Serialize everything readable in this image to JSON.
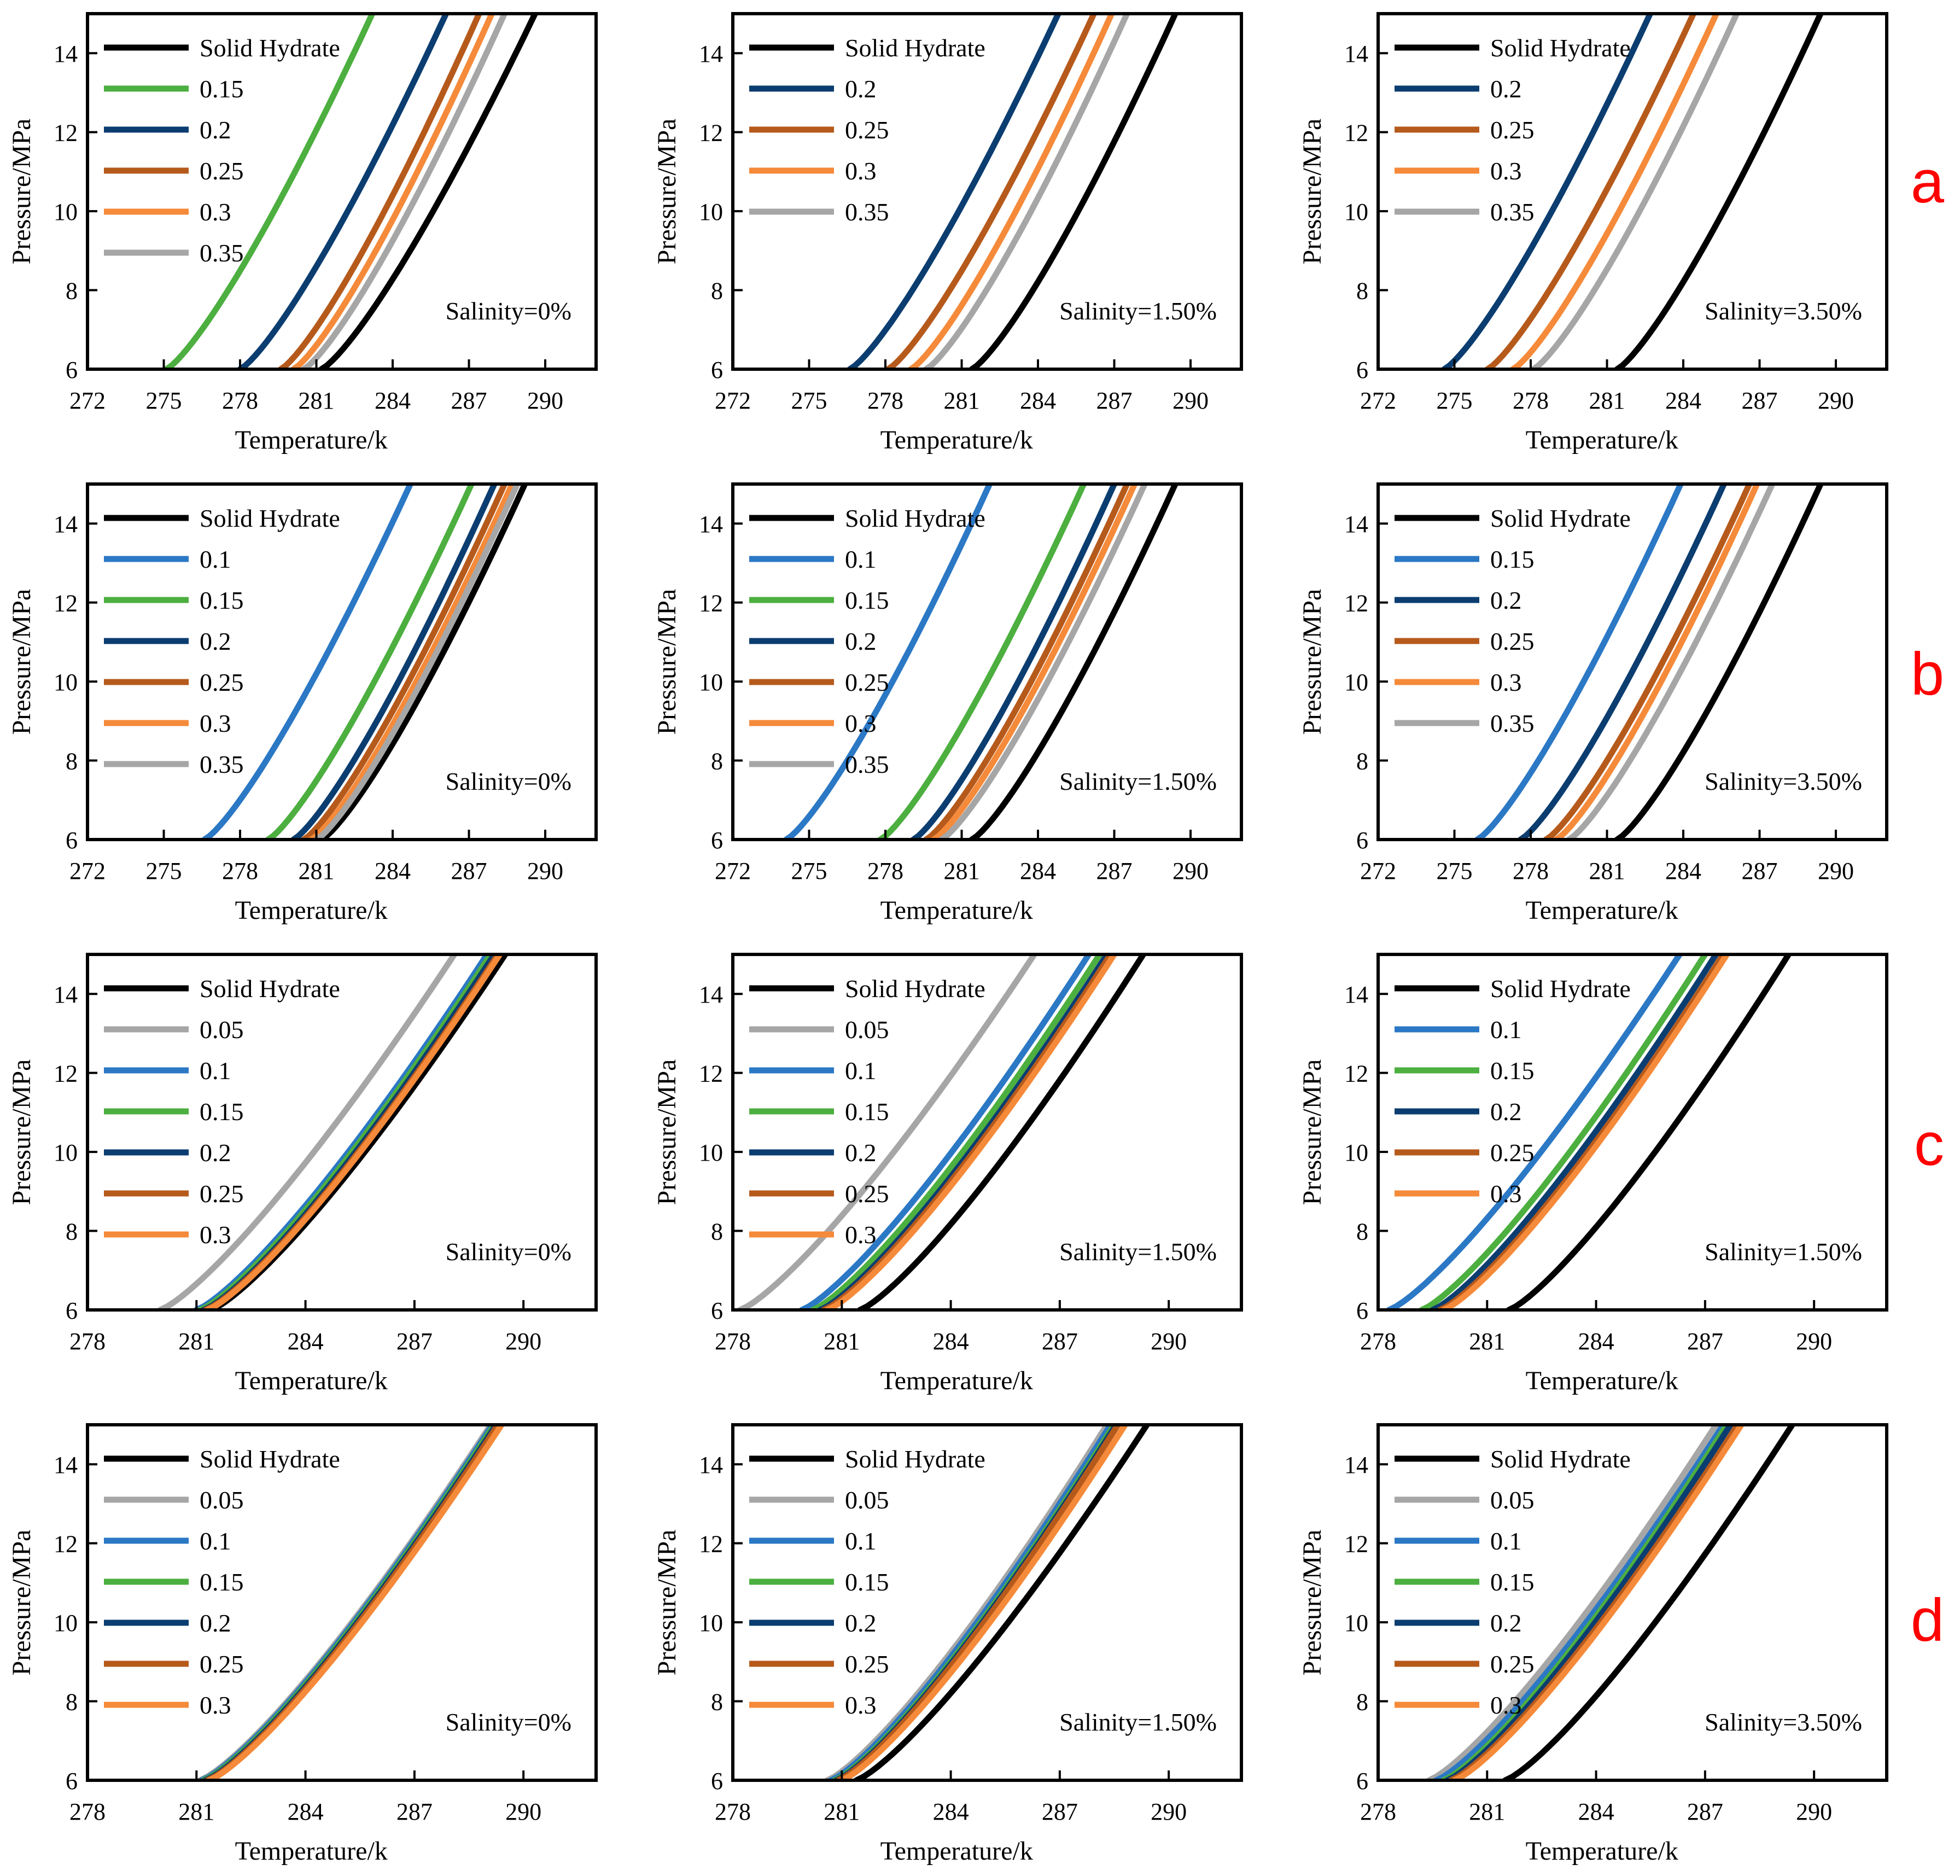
{
  "colors": {
    "black": "#000000",
    "green": "#4caf3f",
    "navy": "#0b3d70",
    "brown": "#b65a1c",
    "orange": "#f58a3a",
    "gray": "#a6a6a6",
    "blue": "#2b78c5",
    "letter": "#ff0000"
  },
  "chart_data": [
    {
      "id": "a1",
      "type": "line",
      "row": "a",
      "xlabel": "Temperature/k",
      "ylabel": "Pressure/MPa",
      "xlim": [
        272,
        292
      ],
      "ylim": [
        6,
        15
      ],
      "xticks": [
        272,
        275,
        278,
        281,
        284,
        287,
        290
      ],
      "yticks": [
        6,
        8,
        10,
        12,
        14
      ],
      "annotation": "Salinity=0%",
      "legend": [
        "Solid Hydrate",
        "0.15",
        "0.2",
        "0.25",
        "0.3",
        "0.35"
      ],
      "series": [
        {
          "name": "Solid Hydrate",
          "color": "black",
          "x": [
            281.2,
            289.6
          ]
        },
        {
          "name": "0.15",
          "color": "green",
          "x": [
            275.1,
            283.2
          ]
        },
        {
          "name": "0.2",
          "color": "navy",
          "x": [
            278.0,
            286.1
          ]
        },
        {
          "name": "0.25",
          "color": "brown",
          "x": [
            279.6,
            287.4
          ]
        },
        {
          "name": "0.3",
          "color": "orange",
          "x": [
            280.1,
            287.9
          ]
        },
        {
          "name": "0.35",
          "color": "gray",
          "x": [
            280.5,
            288.4
          ]
        }
      ]
    },
    {
      "id": "a2",
      "type": "line",
      "row": "a",
      "xlabel": "Temperature/k",
      "ylabel": "Pressure/MPa",
      "xlim": [
        272,
        292
      ],
      "ylim": [
        6,
        15
      ],
      "xticks": [
        272,
        275,
        278,
        281,
        284,
        287,
        290
      ],
      "yticks": [
        6,
        8,
        10,
        12,
        14
      ],
      "annotation": "Salinity=1.50%",
      "legend": [
        "Solid Hydrate",
        "0.2",
        "0.25",
        "0.3",
        "0.35"
      ],
      "series": [
        {
          "name": "Solid Hydrate",
          "color": "black",
          "x": [
            281.4,
            289.4
          ]
        },
        {
          "name": "0.2",
          "color": "navy",
          "x": [
            276.6,
            284.8
          ]
        },
        {
          "name": "0.25",
          "color": "brown",
          "x": [
            278.1,
            286.2
          ]
        },
        {
          "name": "0.3",
          "color": "orange",
          "x": [
            279.0,
            286.9
          ]
        },
        {
          "name": "0.35",
          "color": "gray",
          "x": [
            279.6,
            287.5
          ]
        }
      ]
    },
    {
      "id": "a3",
      "type": "line",
      "row": "a",
      "xlabel": "Temperature/k",
      "ylabel": "Pressure/MPa",
      "xlim": [
        272,
        292
      ],
      "ylim": [
        6,
        15
      ],
      "xticks": [
        272,
        275,
        278,
        281,
        284,
        287,
        290
      ],
      "yticks": [
        6,
        8,
        10,
        12,
        14
      ],
      "annotation": "Salinity=3.50%",
      "legend": [
        "Solid Hydrate",
        "0.2",
        "0.25",
        "0.3",
        "0.35"
      ],
      "series": [
        {
          "name": "Solid Hydrate",
          "color": "black",
          "x": [
            281.4,
            289.4
          ]
        },
        {
          "name": "0.2",
          "color": "navy",
          "x": [
            274.6,
            282.7
          ]
        },
        {
          "name": "0.25",
          "color": "brown",
          "x": [
            276.3,
            284.4
          ]
        },
        {
          "name": "0.3",
          "color": "orange",
          "x": [
            277.3,
            285.3
          ]
        },
        {
          "name": "0.35",
          "color": "gray",
          "x": [
            278.1,
            286.1
          ]
        }
      ]
    },
    {
      "id": "b1",
      "type": "line",
      "row": "b",
      "xlabel": "Temperature/k",
      "ylabel": "Pressure/MPa",
      "xlim": [
        272,
        292
      ],
      "ylim": [
        6,
        15
      ],
      "xticks": [
        272,
        275,
        278,
        281,
        284,
        287,
        290
      ],
      "yticks": [
        6,
        8,
        10,
        12,
        14
      ],
      "annotation": "Salinity=0%",
      "legend": [
        "Solid Hydrate",
        "0.1",
        "0.15",
        "0.2",
        "0.25",
        "0.3",
        "0.35"
      ],
      "series": [
        {
          "name": "Solid Hydrate",
          "color": "black",
          "x": [
            281.2,
            289.2
          ]
        },
        {
          "name": "0.1",
          "color": "blue",
          "x": [
            276.6,
            284.7
          ]
        },
        {
          "name": "0.15",
          "color": "green",
          "x": [
            279.1,
            287.1
          ]
        },
        {
          "name": "0.2",
          "color": "navy",
          "x": [
            280.1,
            288.0
          ]
        },
        {
          "name": "0.25",
          "color": "brown",
          "x": [
            280.5,
            288.4
          ]
        },
        {
          "name": "0.3",
          "color": "orange",
          "x": [
            280.8,
            288.7
          ]
        },
        {
          "name": "0.35",
          "color": "gray",
          "x": [
            281.0,
            288.9
          ]
        }
      ]
    },
    {
      "id": "b2",
      "type": "line",
      "row": "b",
      "xlabel": "Temperature/k",
      "ylabel": "Pressure/MPa",
      "xlim": [
        272,
        292
      ],
      "ylim": [
        6,
        15
      ],
      "xticks": [
        272,
        275,
        278,
        281,
        284,
        287,
        290
      ],
      "yticks": [
        6,
        8,
        10,
        12,
        14
      ],
      "annotation": "Salinity=1.50%",
      "legend": [
        "Solid Hydrate",
        "0.1",
        "0.15",
        "0.2",
        "0.25",
        "0.3",
        "0.35"
      ],
      "series": [
        {
          "name": "Solid Hydrate",
          "color": "black",
          "x": [
            281.4,
            289.4
          ]
        },
        {
          "name": "0.1",
          "color": "blue",
          "x": [
            274.1,
            282.1
          ]
        },
        {
          "name": "0.15",
          "color": "green",
          "x": [
            277.8,
            285.8
          ]
        },
        {
          "name": "0.2",
          "color": "navy",
          "x": [
            279.1,
            287.0
          ]
        },
        {
          "name": "0.25",
          "color": "brown",
          "x": [
            279.6,
            287.5
          ]
        },
        {
          "name": "0.3",
          "color": "orange",
          "x": [
            279.9,
            287.8
          ]
        },
        {
          "name": "0.35",
          "color": "gray",
          "x": [
            280.2,
            288.2
          ]
        }
      ]
    },
    {
      "id": "b3",
      "type": "line",
      "row": "b",
      "xlabel": "Temperature/k",
      "ylabel": "Pressure/MPa",
      "xlim": [
        272,
        292
      ],
      "ylim": [
        6,
        15
      ],
      "xticks": [
        272,
        275,
        278,
        281,
        284,
        287,
        290
      ],
      "yticks": [
        6,
        8,
        10,
        12,
        14
      ],
      "annotation": "Salinity=3.50%",
      "legend": [
        "Solid Hydrate",
        "0.15",
        "0.2",
        "0.25",
        "0.3",
        "0.35"
      ],
      "series": [
        {
          "name": "Solid Hydrate",
          "color": "black",
          "x": [
            281.4,
            289.4
          ]
        },
        {
          "name": "0.15",
          "color": "blue",
          "x": [
            275.9,
            283.9
          ]
        },
        {
          "name": "0.2",
          "color": "navy",
          "x": [
            277.6,
            285.6
          ]
        },
        {
          "name": "0.25",
          "color": "brown",
          "x": [
            278.6,
            286.6
          ]
        },
        {
          "name": "0.3",
          "color": "orange",
          "x": [
            279.0,
            286.9
          ]
        },
        {
          "name": "0.35",
          "color": "gray",
          "x": [
            279.5,
            287.5
          ]
        }
      ]
    },
    {
      "id": "c1",
      "type": "line",
      "row": "c",
      "xlabel": "Temperature/k",
      "ylabel": "Pressure/MPa",
      "xlim": [
        278,
        292
      ],
      "ylim": [
        6,
        15
      ],
      "xticks": [
        278,
        281,
        284,
        287,
        290
      ],
      "yticks": [
        6,
        8,
        10,
        12,
        14
      ],
      "annotation": "Salinity=0%",
      "legend": [
        "Solid Hydrate",
        "0.05",
        "0.1",
        "0.15",
        "0.2",
        "0.25",
        "0.3"
      ],
      "series": [
        {
          "name": "Solid Hydrate",
          "color": "black",
          "x": [
            281.4,
            289.5
          ]
        },
        {
          "name": "0.05",
          "color": "gray",
          "x": [
            280.0,
            288.1
          ]
        },
        {
          "name": "0.1",
          "color": "blue",
          "x": [
            281.0,
            289.0
          ]
        },
        {
          "name": "0.15",
          "color": "green",
          "x": [
            281.1,
            289.1
          ]
        },
        {
          "name": "0.2",
          "color": "navy",
          "x": [
            281.2,
            289.2
          ]
        },
        {
          "name": "0.25",
          "color": "brown",
          "x": [
            281.25,
            289.3
          ]
        },
        {
          "name": "0.3",
          "color": "orange",
          "x": [
            281.3,
            289.35
          ]
        }
      ]
    },
    {
      "id": "c2",
      "type": "line",
      "row": "c",
      "xlabel": "Temperature/k",
      "ylabel": "Pressure/MPa",
      "xlim": [
        278,
        292
      ],
      "ylim": [
        6,
        15
      ],
      "xticks": [
        278,
        281,
        284,
        287,
        290
      ],
      "yticks": [
        6,
        8,
        10,
        12,
        14
      ],
      "annotation": "Salinity=1.50%",
      "legend": [
        "Solid Hydrate",
        "0.05",
        "0.1",
        "0.15",
        "0.2",
        "0.25",
        "0.3"
      ],
      "series": [
        {
          "name": "Solid Hydrate",
          "color": "black",
          "x": [
            281.5,
            289.3
          ]
        },
        {
          "name": "0.05",
          "color": "gray",
          "x": [
            278.2,
            286.3
          ]
        },
        {
          "name": "0.1",
          "color": "blue",
          "x": [
            279.9,
            287.8
          ]
        },
        {
          "name": "0.15",
          "color": "green",
          "x": [
            280.2,
            288.1
          ]
        },
        {
          "name": "0.2",
          "color": "navy",
          "x": [
            280.4,
            288.3
          ]
        },
        {
          "name": "0.25",
          "color": "brown",
          "x": [
            280.5,
            288.4
          ]
        },
        {
          "name": "0.3",
          "color": "orange",
          "x": [
            280.6,
            288.5
          ]
        }
      ]
    },
    {
      "id": "c3",
      "type": "line",
      "row": "c",
      "xlabel": "Temperature/k",
      "ylabel": "Pressure/MPa",
      "xlim": [
        278,
        292
      ],
      "ylim": [
        6,
        15
      ],
      "xticks": [
        278,
        281,
        284,
        287,
        290
      ],
      "yticks": [
        6,
        8,
        10,
        12,
        14
      ],
      "annotation": "Salinity=1.50%",
      "legend": [
        "Solid Hydrate",
        "0.1",
        "0.15",
        "0.2",
        "0.25",
        "0.3"
      ],
      "series": [
        {
          "name": "Solid Hydrate",
          "color": "black",
          "x": [
            281.6,
            289.3
          ]
        },
        {
          "name": "0.1",
          "color": "blue",
          "x": [
            278.3,
            286.3
          ]
        },
        {
          "name": "0.15",
          "color": "green",
          "x": [
            279.2,
            287.0
          ]
        },
        {
          "name": "0.2",
          "color": "navy",
          "x": [
            279.5,
            287.3
          ]
        },
        {
          "name": "0.25",
          "color": "brown",
          "x": [
            279.7,
            287.5
          ]
        },
        {
          "name": "0.3",
          "color": "orange",
          "x": [
            279.8,
            287.6
          ]
        }
      ]
    },
    {
      "id": "d1",
      "type": "line",
      "row": "d",
      "xlabel": "Temperature/k",
      "ylabel": "Pressure/MPa",
      "xlim": [
        278,
        292
      ],
      "ylim": [
        6,
        15
      ],
      "xticks": [
        278,
        281,
        284,
        287,
        290
      ],
      "yticks": [
        6,
        8,
        10,
        12,
        14
      ],
      "annotation": "Salinity=0%",
      "legend": [
        "Solid Hydrate",
        "0.05",
        "0.1",
        "0.15",
        "0.2",
        "0.25",
        "0.3"
      ],
      "series": [
        {
          "name": "Solid Hydrate",
          "color": "black",
          "x": [
            281.3,
            289.3
          ]
        },
        {
          "name": "0.05",
          "color": "gray",
          "x": [
            281.1,
            289.1
          ]
        },
        {
          "name": "0.1",
          "color": "blue",
          "x": [
            281.15,
            289.15
          ]
        },
        {
          "name": "0.15",
          "color": "green",
          "x": [
            281.2,
            289.2
          ]
        },
        {
          "name": "0.2",
          "color": "navy",
          "x": [
            281.25,
            289.25
          ]
        },
        {
          "name": "0.25",
          "color": "brown",
          "x": [
            281.3,
            289.3
          ]
        },
        {
          "name": "0.3",
          "color": "orange",
          "x": [
            281.35,
            289.4
          ]
        }
      ]
    },
    {
      "id": "d2",
      "type": "line",
      "row": "d",
      "xlabel": "Temperature/k",
      "ylabel": "Pressure/MPa",
      "xlim": [
        278,
        292
      ],
      "ylim": [
        6,
        15
      ],
      "xticks": [
        278,
        281,
        284,
        287,
        290
      ],
      "yticks": [
        6,
        8,
        10,
        12,
        14
      ],
      "annotation": "Salinity=1.50%",
      "legend": [
        "Solid Hydrate",
        "0.05",
        "0.1",
        "0.15",
        "0.2",
        "0.25",
        "0.3"
      ],
      "series": [
        {
          "name": "Solid Hydrate",
          "color": "black",
          "x": [
            281.4,
            289.4
          ]
        },
        {
          "name": "0.05",
          "color": "gray",
          "x": [
            280.6,
            288.3
          ]
        },
        {
          "name": "0.1",
          "color": "blue",
          "x": [
            280.7,
            288.4
          ]
        },
        {
          "name": "0.15",
          "color": "green",
          "x": [
            280.8,
            288.5
          ]
        },
        {
          "name": "0.2",
          "color": "navy",
          "x": [
            280.85,
            288.55
          ]
        },
        {
          "name": "0.25",
          "color": "brown",
          "x": [
            280.9,
            288.6
          ]
        },
        {
          "name": "0.3",
          "color": "orange",
          "x": [
            281.0,
            288.8
          ]
        }
      ]
    },
    {
      "id": "d3",
      "type": "line",
      "row": "d",
      "xlabel": "Temperature/k",
      "ylabel": "Pressure/MPa",
      "xlim": [
        278,
        292
      ],
      "ylim": [
        6,
        15
      ],
      "xticks": [
        278,
        281,
        284,
        287,
        290
      ],
      "yticks": [
        6,
        8,
        10,
        12,
        14
      ],
      "annotation": "Salinity=3.50%",
      "legend": [
        "Solid Hydrate",
        "0.05",
        "0.1",
        "0.15",
        "0.2",
        "0.25",
        "0.3"
      ],
      "series": [
        {
          "name": "Solid Hydrate",
          "color": "black",
          "x": [
            281.5,
            289.4
          ]
        },
        {
          "name": "0.05",
          "color": "gray",
          "x": [
            279.4,
            287.3
          ]
        },
        {
          "name": "0.1",
          "color": "blue",
          "x": [
            279.6,
            287.5
          ]
        },
        {
          "name": "0.15",
          "color": "green",
          "x": [
            279.8,
            287.6
          ]
        },
        {
          "name": "0.2",
          "color": "navy",
          "x": [
            279.9,
            287.7
          ]
        },
        {
          "name": "0.25",
          "color": "brown",
          "x": [
            280.0,
            287.9
          ]
        },
        {
          "name": "0.3",
          "color": "orange",
          "x": [
            280.1,
            288.0
          ]
        }
      ]
    }
  ],
  "row_labels": [
    "a",
    "b",
    "c",
    "d"
  ]
}
